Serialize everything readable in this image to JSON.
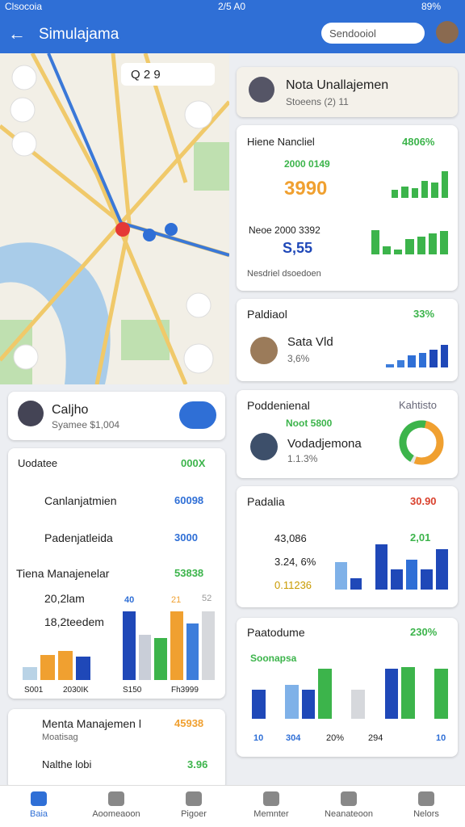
{
  "status_bar": {
    "carrier": "Clsocoia",
    "time": "2/5 A0",
    "battery": "89%"
  },
  "app_bar": {
    "title": "Simulajama",
    "search": "Sendooiol"
  },
  "map": {
    "search": "Q 2 9"
  },
  "profile_card": {
    "name": "Caljho",
    "subtitle": "Syamee $1,004"
  },
  "list_card": {
    "header": {
      "label": "Uodatee",
      "value": "000X"
    },
    "rows": [
      {
        "label": "Canlanjatmien",
        "value": "60098"
      },
      {
        "label": "Padenjatleida",
        "value": "3000"
      }
    ],
    "chart": {
      "title": "Tiena Manajenelar",
      "value": "53838",
      "items": [
        "20,2lam",
        "18,2teedem"
      ],
      "left_bars": {
        "values": [
          30,
          60,
          70,
          55
        ],
        "colors": [
          "#b9d3e6",
          "#f0a030",
          "#f0a030",
          "#1f48b8"
        ]
      },
      "right_bars": {
        "values": [
          90,
          60,
          55,
          90,
          75,
          90
        ],
        "colors": [
          "#1f48b8",
          "#c9ced8",
          "#3cb44b",
          "#f0a030",
          "#3d7ddb",
          "#d6d8dc"
        ]
      },
      "bar_labels": [
        "40",
        "21",
        "52"
      ],
      "x_labels": [
        "S001",
        "2030IK",
        "S150",
        "Fh3999"
      ]
    }
  },
  "bottom_card": {
    "title": "Menta Manajemen l",
    "value": "45938",
    "subtitle": "Moatisag",
    "row": {
      "label": "Nalthe lobi",
      "value": "3.96"
    }
  },
  "nota_card": {
    "title": "Nota Unallajemen",
    "subtitle": "Stoeens (2) 11"
  },
  "hiene_card": {
    "title": "Hiene Nancliel",
    "value": "4806%",
    "sub": "2000 0149",
    "big": "3990",
    "line2": "Neoe 2000 3392",
    "amount": "S,55",
    "footer": "Nesdriel dsoedoen",
    "top_bars": {
      "values": [
        30,
        40,
        35,
        60,
        55,
        95
      ],
      "colors": [
        "#3cb44b",
        "#3cb44b",
        "#3cb44b",
        "#3cb44b",
        "#3cb44b",
        "#3cb44b"
      ]
    },
    "low_bars": {
      "values": [
        95,
        30,
        20,
        60,
        70,
        80,
        90
      ],
      "colors": [
        "#3cb44b",
        "#3cb44b",
        "#3cb44b",
        "#3cb44b",
        "#3cb44b",
        "#3cb44b",
        "#3cb44b"
      ]
    }
  },
  "paldiaol_card": {
    "title": "Paldiaol",
    "value": "33%",
    "name": "Sata Vld",
    "pct": "3,6%",
    "bars": {
      "values": [
        15,
        30,
        50,
        60,
        75,
        95
      ],
      "colors": [
        "#3d7ddb",
        "#3d7ddb",
        "#2f6fd6",
        "#2f6fd6",
        "#1f48b8",
        "#1f48b8"
      ]
    }
  },
  "podd_card": {
    "title": "Poddenienal",
    "tag": "Kahtisto",
    "sub": "Noot 5800",
    "name": "Vodadjemona",
    "pct": "1.1.3%"
  },
  "padalia_card": {
    "title": "Padalia",
    "value": "30.90",
    "items": [
      "43,086",
      "3.24, 6%",
      "0.11236"
    ],
    "right_label": "2,01",
    "left_bars": {
      "values": [
        85,
        35
      ],
      "colors": [
        "#7fb1e8",
        "#1f48b8"
      ]
    },
    "right_bars": {
      "values": [
        90,
        40,
        60,
        40,
        80
      ],
      "colors": [
        "#1f48b8",
        "#1f48b8",
        "#2f6fd6",
        "#1f48b8",
        "#1f48b8"
      ]
    }
  },
  "paato_card": {
    "title": "Paatodume",
    "value": "230%",
    "sub": "Soonapsa",
    "bars": {
      "values": [
        55,
        0,
        65,
        55,
        95,
        0,
        55,
        0,
        95,
        98,
        0,
        95
      ],
      "colors": [
        "#1f48b8",
        "#fff",
        "#7fb1e8",
        "#1f48b8",
        "#3cb44b",
        "#fff",
        "#d6d8dc",
        "#fff",
        "#1f48b8",
        "#3cb44b",
        "#fff",
        "#3cb44b"
      ]
    },
    "x_labels": [
      "10",
      "304",
      "20%",
      "294",
      "10"
    ]
  },
  "nav": [
    "Baia",
    "Aoomeaoon",
    "Pigoer",
    "Memnter",
    "Neanateoon",
    "Nelors"
  ]
}
